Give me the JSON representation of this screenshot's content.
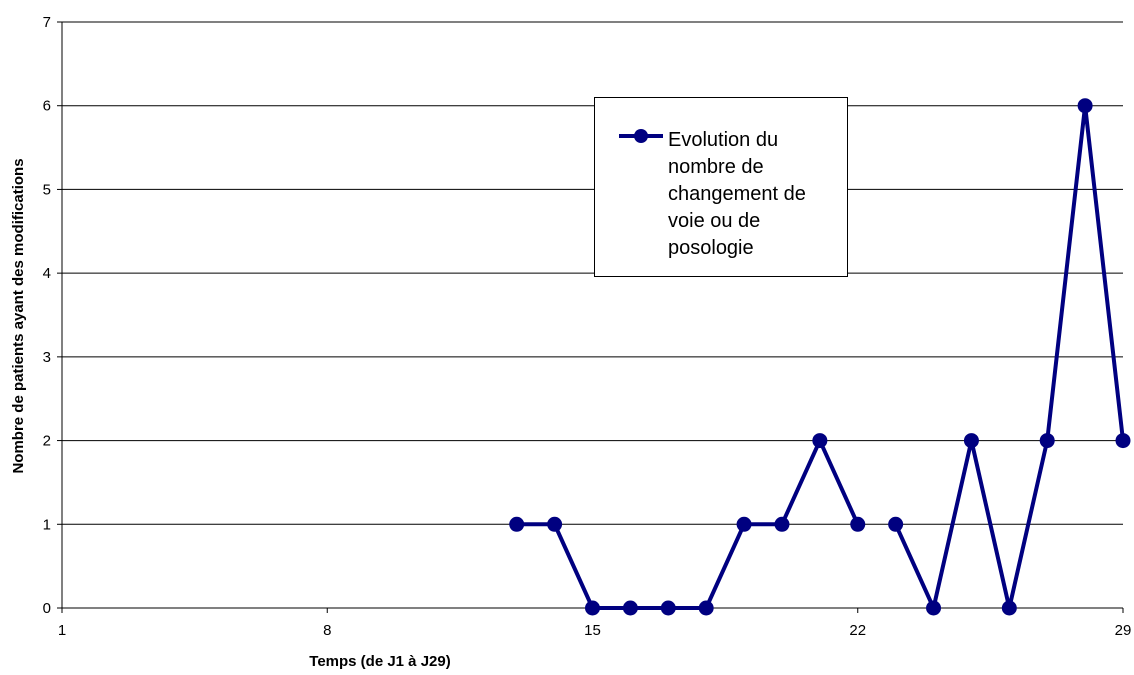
{
  "chart_data": {
    "type": "line",
    "x_axis": {
      "title": "Temps (de J1 à J29)",
      "range": [
        1,
        29
      ],
      "ticks": [
        1,
        8,
        15,
        22,
        29
      ]
    },
    "y_axis": {
      "title": "Nombre de patients ayant des modifications",
      "range": [
        0,
        7
      ],
      "ticks": [
        0,
        1,
        2,
        3,
        4,
        5,
        6,
        7
      ],
      "gridlines": true
    },
    "legend": {
      "placement": "top-right-center"
    },
    "series": [
      {
        "name": "Evolution du nombre de changement de voie ou de posologie",
        "color": "#000080",
        "marker": "circle",
        "segments": [
          [
            {
              "x": 13,
              "y": 1
            },
            {
              "x": 14,
              "y": 1
            },
            {
              "x": 15,
              "y": 0
            },
            {
              "x": 16,
              "y": 0
            },
            {
              "x": 17,
              "y": 0
            },
            {
              "x": 18,
              "y": 0
            },
            {
              "x": 19,
              "y": 1
            },
            {
              "x": 20,
              "y": 1
            },
            {
              "x": 21,
              "y": 2
            },
            {
              "x": 22,
              "y": 1
            }
          ],
          [
            {
              "x": 23,
              "y": 1
            },
            {
              "x": 24,
              "y": 0
            },
            {
              "x": 25,
              "y": 2
            },
            {
              "x": 26,
              "y": 0
            },
            {
              "x": 27,
              "y": 2
            },
            {
              "x": 28,
              "y": 6
            },
            {
              "x": 29,
              "y": 2
            }
          ]
        ]
      }
    ]
  }
}
